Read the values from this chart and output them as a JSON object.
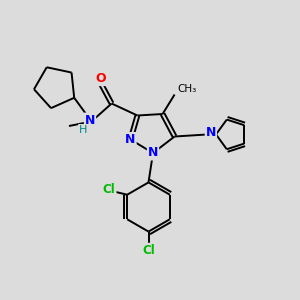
{
  "background_color": "#dcdcdc",
  "atom_colors": {
    "N": "#0000ff",
    "O": "#ff0000",
    "Cl": "#00bb00",
    "C": "#000000",
    "H": "#008888"
  },
  "figsize": [
    3.0,
    3.0
  ],
  "dpi": 100
}
